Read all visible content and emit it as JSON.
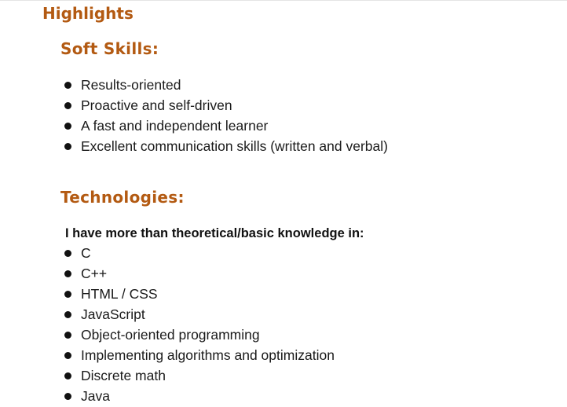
{
  "document": {
    "heading": "Highlights",
    "soft_skills": {
      "title": "Soft Skills:",
      "items": [
        "Results-oriented",
        "Proactive and self-driven",
        "A fast and independent learner",
        "Excellent communication skills (written and verbal)"
      ]
    },
    "technologies": {
      "title": "Technologies:",
      "intro": "I have more than theoretical/basic knowledge in:",
      "items": [
        "C",
        "C++",
        "HTML / CSS",
        "JavaScript",
        "Object-oriented programming",
        "Implementing algorithms and optimization",
        "Discrete math",
        "Java"
      ]
    }
  },
  "colors": {
    "heading": "#b35a12",
    "text": "#1a1a1a",
    "bullet": "#111111"
  }
}
